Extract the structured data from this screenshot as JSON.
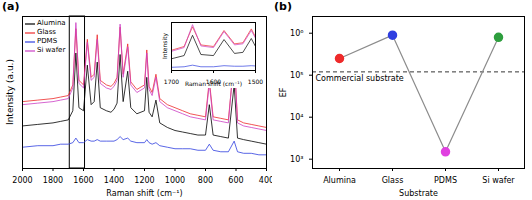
{
  "chart_data": [
    {
      "type": "line",
      "title": "(a)",
      "x_label": "Raman shift (cm⁻¹)",
      "y_label": "Intensity (a.u.)",
      "x": [
        2000,
        1900,
        1800,
        1750,
        1700,
        1670,
        1650,
        1630,
        1600,
        1575,
        1550,
        1530,
        1510,
        1490,
        1450,
        1420,
        1400,
        1380,
        1360,
        1340,
        1310,
        1290,
        1250,
        1200,
        1185,
        1170,
        1150,
        1125,
        1100,
        1050,
        1000,
        950,
        900,
        850,
        800,
        775,
        750,
        700,
        650,
        612,
        590,
        550,
        500,
        450,
        400
      ],
      "series": [
        {
          "name": "Alumina",
          "color": "#000000",
          "values": [
            28,
            29,
            30,
            31,
            32,
            38,
            76,
            40,
            38,
            68,
            42,
            44,
            70,
            40,
            38,
            37,
            39,
            43,
            75,
            44,
            64,
            40,
            36,
            38,
            60,
            37,
            34,
            45,
            30,
            27,
            25,
            24,
            23,
            22,
            22,
            42,
            22,
            21,
            20,
            55,
            20,
            19,
            18,
            17,
            16
          ]
        },
        {
          "name": "Glass",
          "color": "#ee2a2a",
          "values": [
            44,
            45,
            46,
            47,
            48,
            55,
            92,
            58,
            55,
            85,
            60,
            62,
            88,
            58,
            55,
            54,
            56,
            60,
            93,
            62,
            82,
            57,
            52,
            55,
            78,
            54,
            50,
            62,
            46,
            42,
            40,
            38,
            36,
            35,
            34,
            58,
            34,
            33,
            32,
            72,
            32,
            30,
            29,
            28,
            27
          ]
        },
        {
          "name": "PDMS",
          "color": "#2f3fe0",
          "values": [
            14,
            15,
            15,
            16,
            16,
            17,
            20,
            17,
            17,
            19,
            18,
            18,
            19,
            18,
            18,
            18,
            18,
            19,
            21,
            19,
            20,
            18,
            17,
            17,
            19,
            17,
            16,
            17,
            15,
            14,
            13,
            13,
            13,
            12,
            12,
            16,
            12,
            11,
            11,
            18,
            11,
            10,
            10,
            9,
            9
          ]
        },
        {
          "name": "Si wafer",
          "color": "#cc3fc4",
          "values": [
            42,
            43,
            44,
            45,
            46,
            53,
            96,
            56,
            53,
            83,
            58,
            60,
            85,
            56,
            53,
            52,
            54,
            58,
            95,
            60,
            80,
            55,
            50,
            53,
            76,
            52,
            48,
            60,
            44,
            40,
            38,
            36,
            34,
            33,
            32,
            56,
            32,
            31,
            30,
            74,
            30,
            28,
            27,
            26,
            25
          ]
        }
      ],
      "xlim": [
        2000,
        400
      ],
      "xticks": [
        2000,
        1800,
        1600,
        1400,
        1200,
        1000,
        800,
        600,
        400
      ],
      "ylim": [
        0,
        100
      ],
      "tick_labels": "x",
      "legend": "upper left",
      "box_x": [
        1690,
        1590
      ]
    },
    {
      "type": "line",
      "x_label": "Raman shift (cm⁻¹)",
      "y_label": "Intensity",
      "x": [
        1700,
        1670,
        1650,
        1630,
        1600,
        1575,
        1550,
        1530,
        1510,
        1490
      ],
      "series": [
        {
          "color": "#000000",
          "values": [
            32,
            38,
            76,
            40,
            38,
            68,
            42,
            44,
            70,
            40
          ]
        },
        {
          "color": "#ee2a2a",
          "values": [
            48,
            55,
            92,
            58,
            55,
            85,
            60,
            62,
            88,
            58
          ]
        },
        {
          "color": "#2f3fe0",
          "values": [
            16,
            17,
            20,
            17,
            17,
            19,
            18,
            18,
            19,
            18
          ]
        },
        {
          "color": "#cc3fc4",
          "values": [
            46,
            53,
            96,
            56,
            53,
            83,
            58,
            60,
            85,
            56
          ]
        }
      ],
      "xlim": [
        1700,
        1500
      ],
      "xticks": [
        1700,
        1600,
        1500
      ],
      "ylim": [
        10,
        100
      ],
      "tick_labels": "x"
    },
    {
      "type": "line",
      "marker": "circle",
      "title": "(b)",
      "x_label": "Substrate",
      "y_label": "EF",
      "categories": [
        "Alumina",
        "Glass",
        "PDMS",
        "Si wafer"
      ],
      "values": [
        250000,
        900000,
        1500,
        800000
      ],
      "colors": [
        "#ee2a2a",
        "#2f3fe0",
        "#e040e0",
        "#2e9e3e"
      ],
      "color": "#8c8c8c",
      "log": "y",
      "ylim": [
        600,
        2500000
      ],
      "yticks": [
        {
          "value": 1000,
          "label": "10³"
        },
        {
          "value": 10000,
          "label": "10⁴"
        },
        {
          "value": 100000,
          "label": "10⁵"
        },
        {
          "value": 1000000,
          "label": "10⁶"
        }
      ],
      "annotations": [
        {
          "text": "Commercial substrate",
          "y": 120000,
          "line_style": "dashed"
        }
      ]
    }
  ]
}
